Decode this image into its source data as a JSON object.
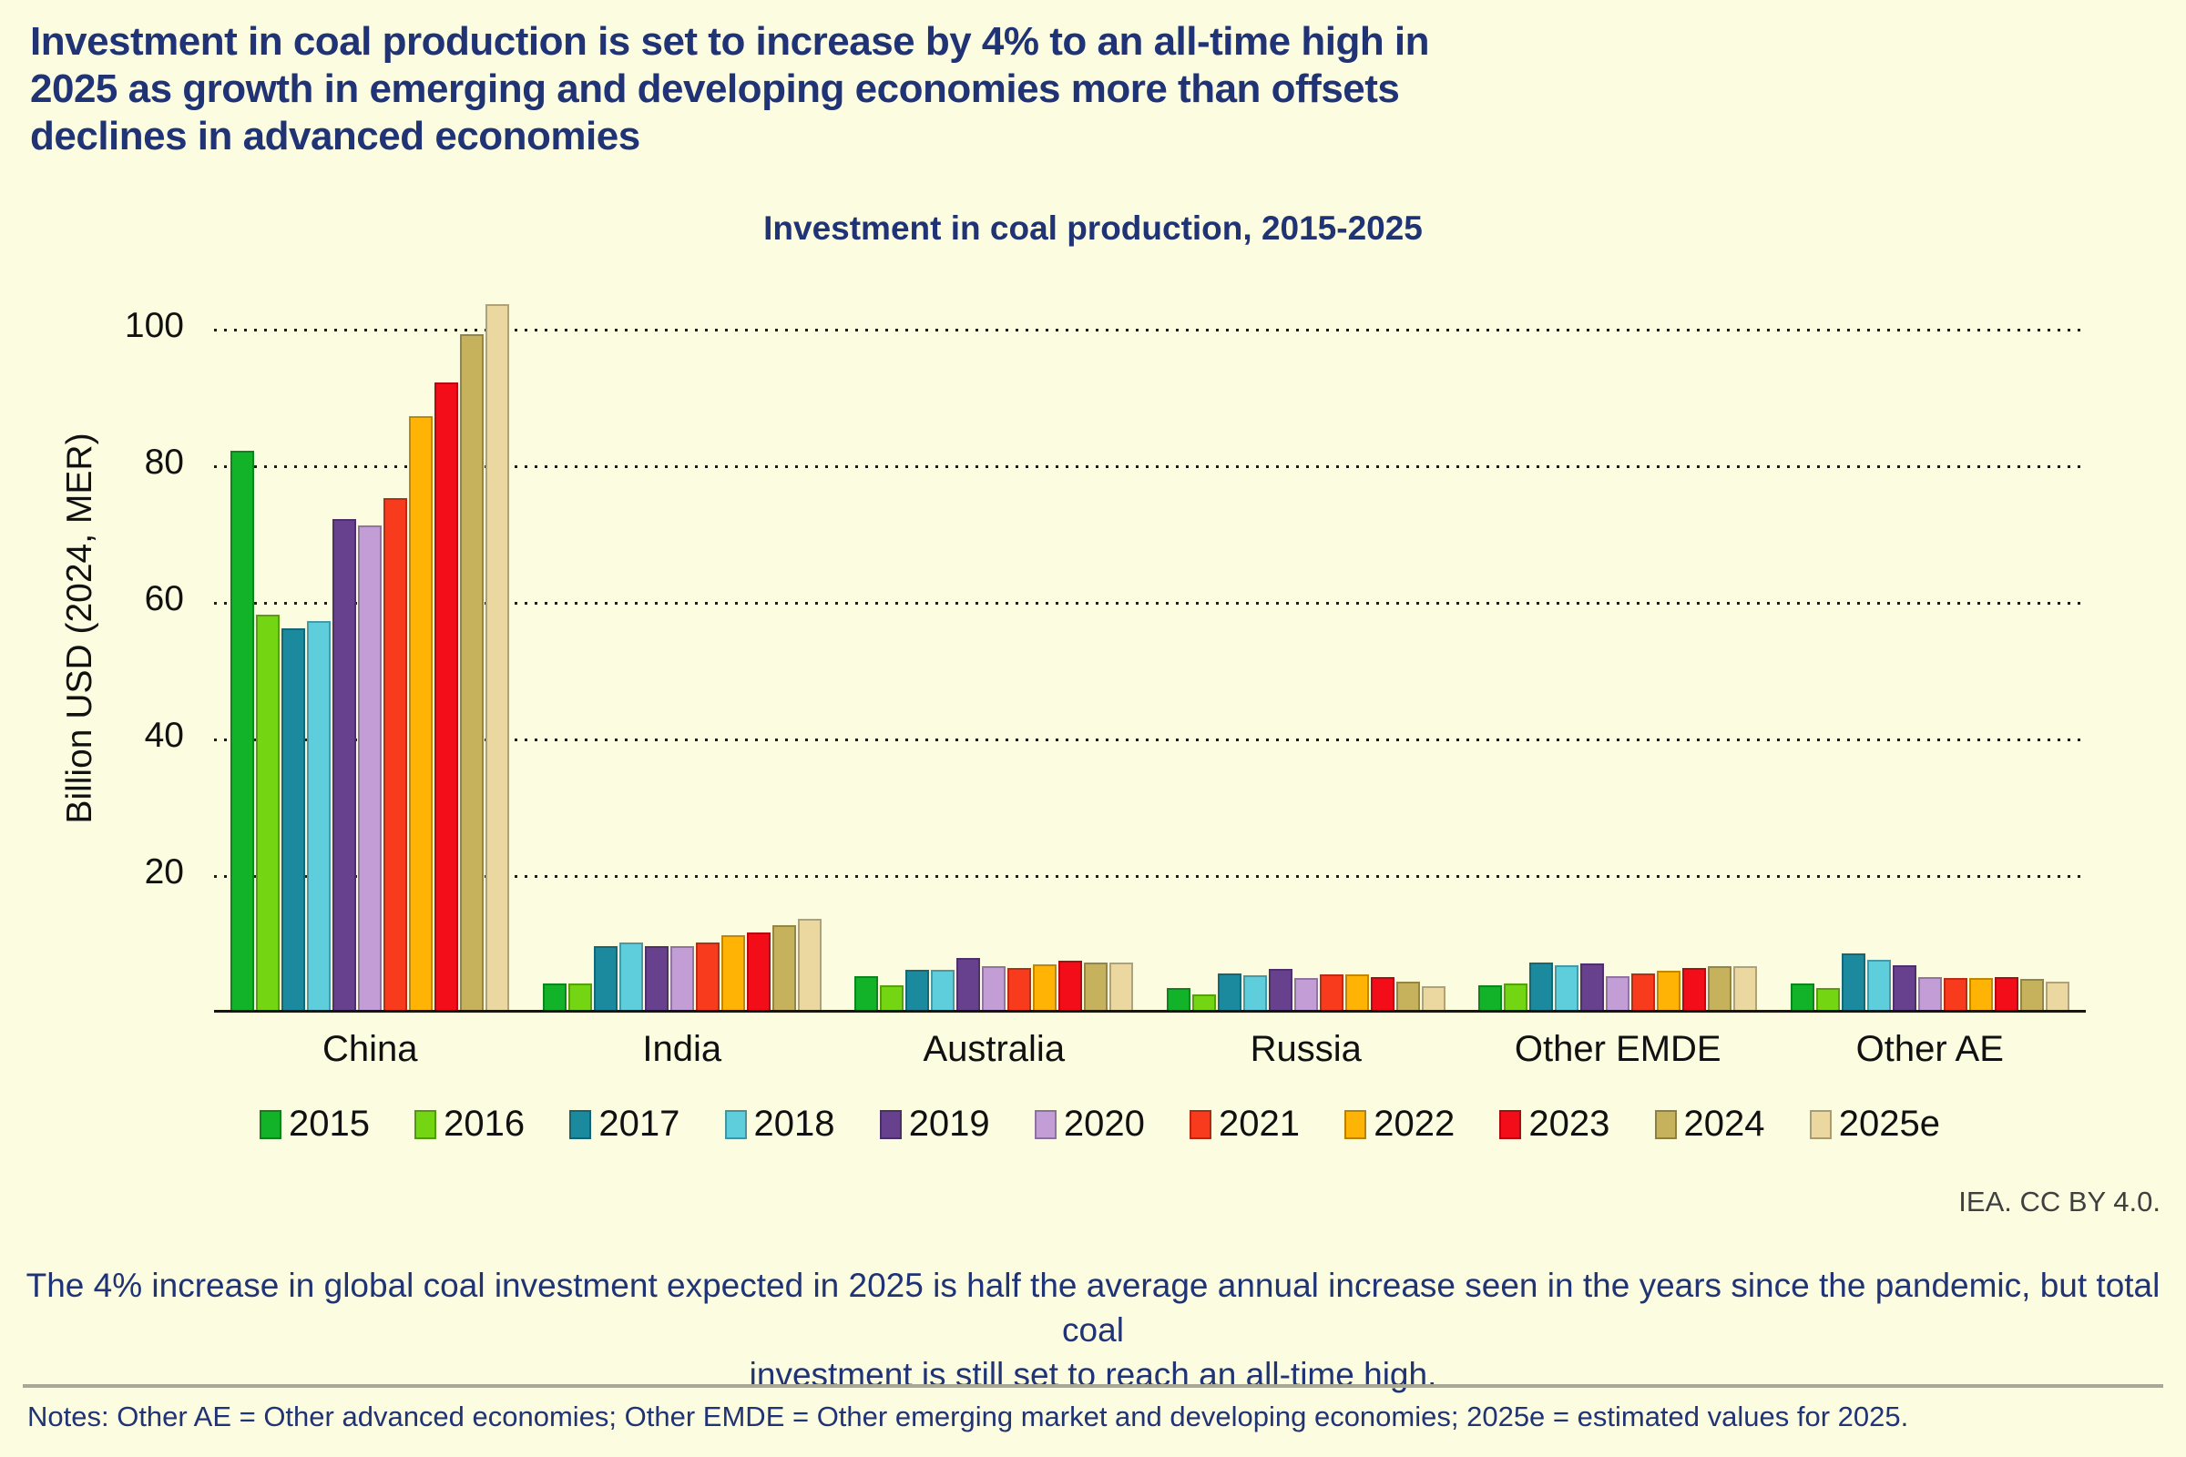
{
  "page": {
    "headline": "Investment in coal production is set to increase by 4% to an all-time high in 2025 as growth in emerging and developing economies more than offsets declines in advanced economies",
    "credit": "IEA. CC BY 4.0.",
    "caption_line1": "The 4% increase in global coal investment expected in 2025 is half the average annual increase seen in the years since the pandemic, but total coal",
    "caption_line2": "investment is still set to reach an all-time high.",
    "notes": "Notes: Other AE = Other advanced economies; Other EMDE = Other emerging market and developing economies; 2025e = estimated values for 2025."
  },
  "colors": {
    "background": "#FCFCE0",
    "heading_navy": "#1F3375",
    "axis_black": "#111111",
    "credit_gray": "#3F3F3F",
    "divider_gray": "#A9A795"
  },
  "chart_data": {
    "type": "bar",
    "title": "Investment in coal production, 2015-2025",
    "xlabel": "",
    "ylabel": "Billion USD (2024, MER)",
    "ylim": [
      0,
      107
    ],
    "yticks": [
      20,
      40,
      60,
      80,
      100
    ],
    "grid": "horizontal dotted",
    "legend_position": "bottom",
    "categories": [
      "China",
      "India",
      "Australia",
      "Russia",
      "Other EMDE",
      "Other AE"
    ],
    "series": [
      {
        "name": "2015",
        "color": "#12B229",
        "values": [
          82,
          4,
          5,
          3.3,
          3.7,
          4
        ]
      },
      {
        "name": "2016",
        "color": "#74D513",
        "values": [
          58,
          4,
          3.7,
          2.4,
          4,
          3.3
        ]
      },
      {
        "name": "2017",
        "color": "#1B8A9E",
        "values": [
          56,
          9.5,
          6,
          5.5,
          7.1,
          8.4
        ]
      },
      {
        "name": "2018",
        "color": "#5FCEDC",
        "values": [
          57,
          10,
          6,
          5.2,
          6.6,
          7.5
        ]
      },
      {
        "name": "2019",
        "color": "#67408E",
        "values": [
          72,
          9.5,
          7.7,
          6.1,
          6.9,
          6.7
        ]
      },
      {
        "name": "2020",
        "color": "#C29DD6",
        "values": [
          71,
          9.5,
          6.5,
          4.8,
          5,
          4.9
        ]
      },
      {
        "name": "2021",
        "color": "#F93B1D",
        "values": [
          75,
          10,
          6.2,
          5.3,
          5.4,
          4.8
        ]
      },
      {
        "name": "2022",
        "color": "#FFB405",
        "values": [
          87,
          11,
          6.8,
          5.3,
          5.8,
          4.8
        ]
      },
      {
        "name": "2023",
        "color": "#F20D18",
        "values": [
          92,
          11.5,
          7.3,
          4.9,
          6.2,
          4.9
        ]
      },
      {
        "name": "2024",
        "color": "#C6B25C",
        "values": [
          99,
          12.5,
          7,
          4.3,
          6.5,
          4.6
        ]
      },
      {
        "name": "2025e",
        "color": "#EAD8A0",
        "values": [
          103.5,
          13.5,
          7,
          3.6,
          6.5,
          4.3
        ]
      }
    ]
  }
}
